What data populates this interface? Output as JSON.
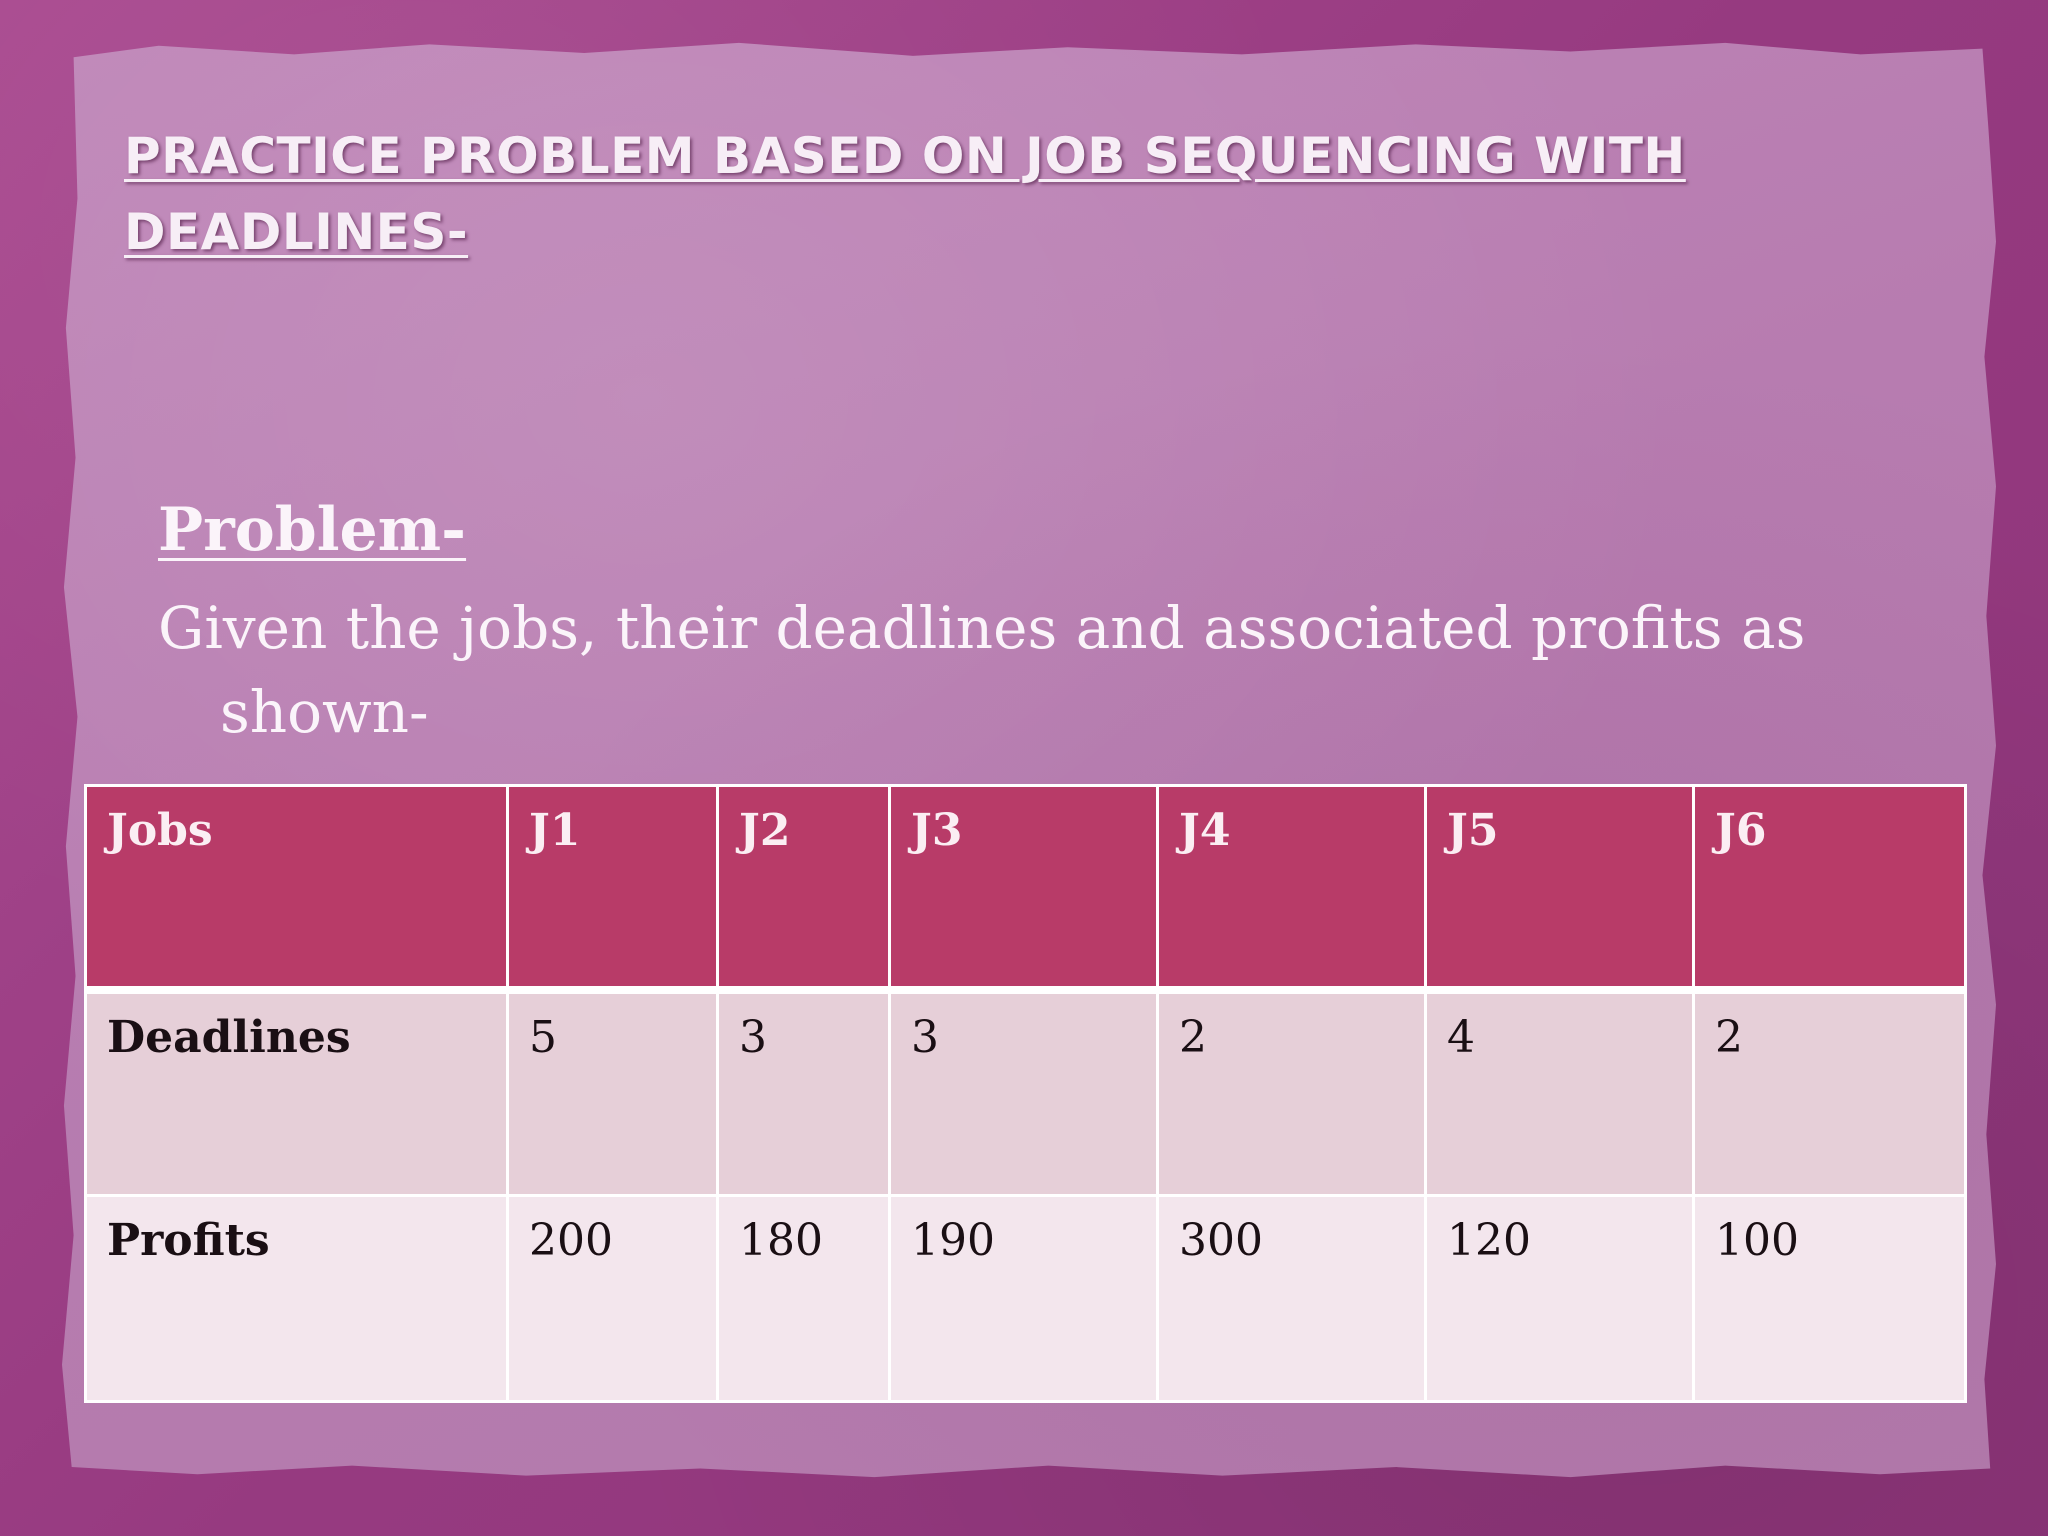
{
  "slide": {
    "title": "PRACTICE PROBLEM BASED ON JOB SEQUENCING WITH DEADLINES-",
    "problem_heading": "Problem-",
    "problem_text": "Given the jobs, their deadlines and associated profits as shown-"
  },
  "table": {
    "header": [
      "Jobs",
      "J1",
      "J2",
      "J3",
      "J4",
      "J5",
      "J6"
    ],
    "rows": [
      [
        "Deadlines",
        "5",
        "3",
        "3",
        "2",
        "4",
        "2"
      ],
      [
        "Profits",
        "200",
        "180",
        "190",
        "300",
        "120",
        "100"
      ]
    ]
  },
  "colors": {
    "background": "#9c3d86",
    "paper": "#b77cb0",
    "header_fill": "#b83b68",
    "row_a_fill": "#e6cfd8",
    "row_b_fill": "#f3e6ed"
  }
}
